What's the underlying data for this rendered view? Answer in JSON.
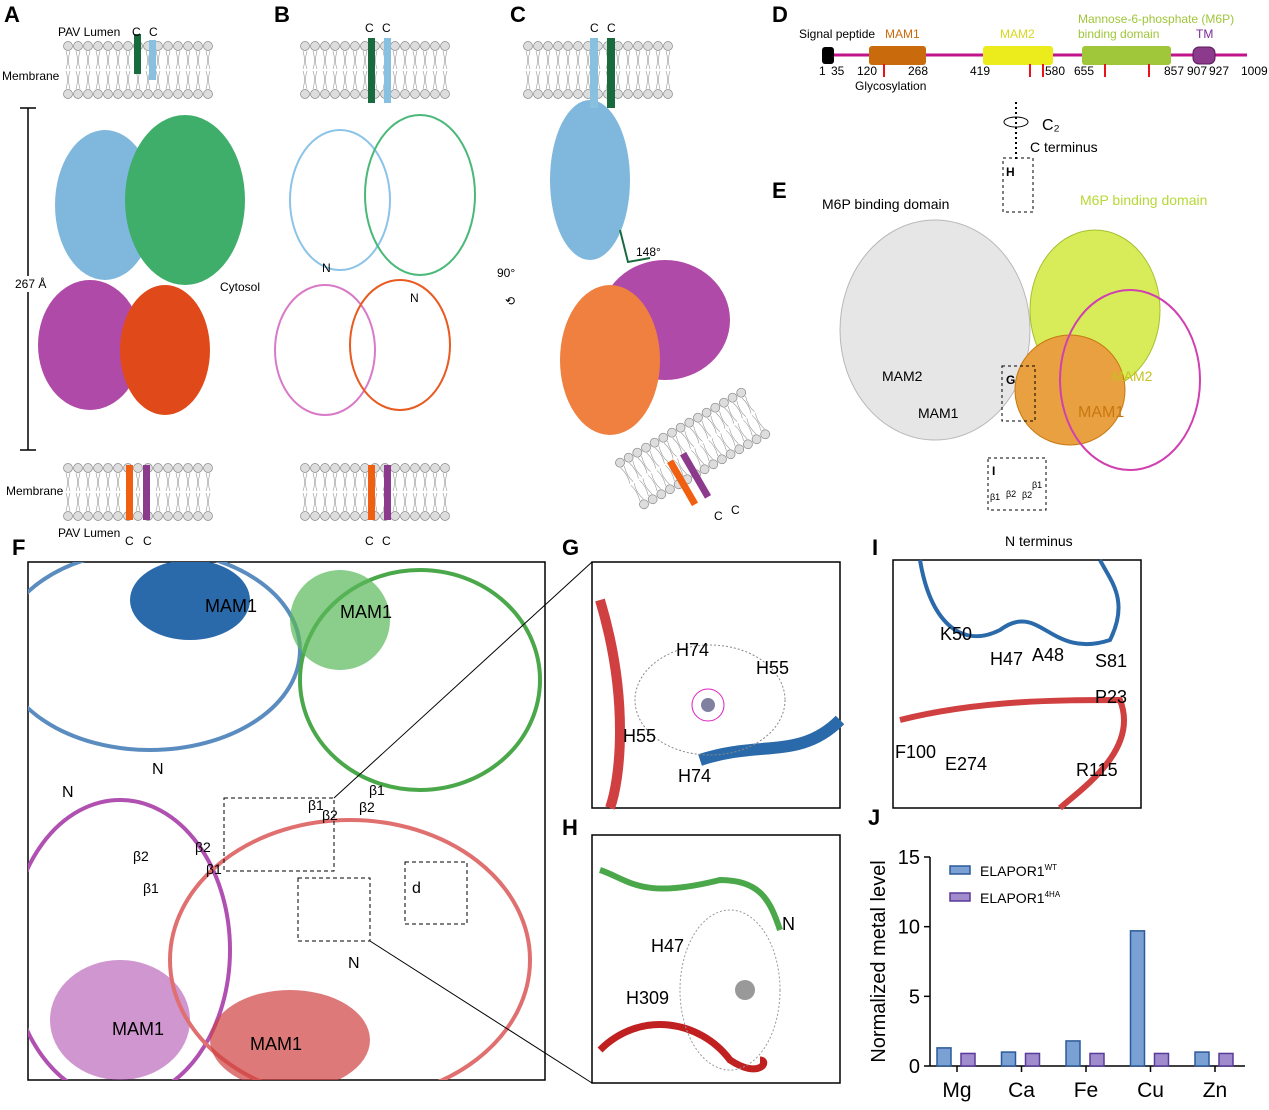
{
  "panels": {
    "A": {
      "letter": "A",
      "lumen": "PAV Lumen",
      "membrane_top": "Membrane",
      "membrane_bottom": "Membrane",
      "lumen_bottom": "PAV Lumen",
      "length": "267 Å",
      "cytosol": "Cytosol",
      "c_label": "C"
    },
    "B": {
      "letter": "B",
      "n_label": "N",
      "c_label": "C"
    },
    "C": {
      "letter": "C",
      "rotation": "90°",
      "angle": "148°",
      "c_label": "C"
    },
    "D": {
      "letter": "D",
      "signal": "Signal peptide",
      "mam1": "MAM1",
      "mam2": "MAM2",
      "m6p_line1": "Mannose-6-phosphate (M6P)",
      "m6p_line2": "binding domain",
      "tm": "TM",
      "glyco": "Glycosylation",
      "positions": [
        "1",
        "35",
        "120",
        "268",
        "419",
        "580",
        "655",
        "857",
        "907",
        "927",
        "1009"
      ],
      "colors": {
        "backbone": "#c0138c",
        "signal": "#000000",
        "mam1": "#c96a0c",
        "mam2": "#ecec1c",
        "m6p": "#a0c63a",
        "tm": "#8c3a8c",
        "glyco": "#e8141c"
      }
    },
    "E": {
      "letter": "E",
      "axis": "C₂",
      "c_term": "C terminus",
      "n_term": "N terminus",
      "m6p_left": "M6P binding domain",
      "m6p_right": "M6P binding domain",
      "mam2_left": "MAM2",
      "mam2_right": "MAM2",
      "mam1_left": "MAM1",
      "mam1_right": "MAM1",
      "box_h": "H",
      "box_g": "G",
      "box_i": "I",
      "b1a": "β1",
      "b2a": "β2",
      "b2b": "β2",
      "b1b": "β1"
    },
    "F": {
      "letter": "F",
      "labels": [
        "MAM1",
        "MAM1",
        "N",
        "N",
        "β1",
        "β2",
        "β1",
        "β2",
        "β2",
        "β1",
        "β2",
        "β1",
        "d",
        "N",
        "MAM1",
        "MAM1"
      ]
    },
    "G": {
      "letter": "G",
      "labels": [
        "H74",
        "H55",
        "H55",
        "H74"
      ]
    },
    "H": {
      "letter": "H",
      "labels": [
        "H47",
        "H309",
        "N"
      ]
    },
    "I": {
      "letter": "I",
      "labels": [
        "K50",
        "H47",
        "A48",
        "S81",
        "P23",
        "F100",
        "E274",
        "R115"
      ]
    },
    "J": {
      "letter": "J"
    }
  },
  "chart_data": {
    "type": "bar",
    "categories": [
      "Mg",
      "Ca",
      "Fe",
      "Cu",
      "Zn"
    ],
    "series": [
      {
        "name": "ELAPOR1",
        "sup": "WT",
        "values": [
          1.3,
          1.0,
          1.8,
          9.7,
          1.0
        ],
        "color": "#7aa0d4",
        "edge": "#2a5a9a"
      },
      {
        "name": "ELAPOR1",
        "sup": "4HA",
        "values": [
          0.9,
          0.9,
          0.9,
          0.9,
          0.9
        ],
        "color": "#a08ccc",
        "edge": "#5a3a9a"
      }
    ],
    "ylabel": "Normalized metal level",
    "ylim": [
      0,
      15
    ],
    "yticks": [
      "0",
      "5",
      "10",
      "15"
    ],
    "legend": "top-left"
  }
}
